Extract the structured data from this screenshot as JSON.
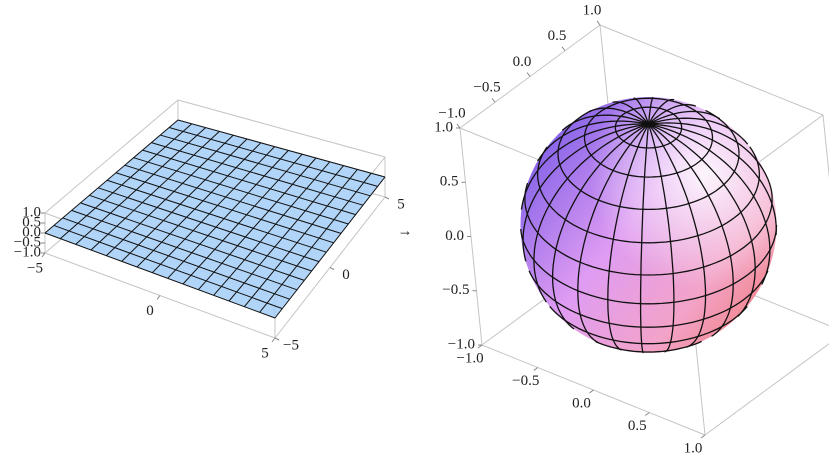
{
  "chart_data": [
    {
      "type": "surface3d",
      "color": "#a9d0f7",
      "mesh": 15,
      "xlim": [
        -5,
        5
      ],
      "ylim": [
        -5,
        5
      ],
      "zlim": [
        -1,
        1
      ],
      "xticks": [
        {
          "value": -5,
          "label": "−5"
        },
        0,
        5
      ],
      "yticks": [
        {
          "value": -5,
          "label": "−5"
        },
        0,
        5
      ],
      "zticks": [
        {
          "value": -1,
          "label": "−1.0"
        },
        {
          "value": -0.5,
          "label": "−0.5"
        },
        {
          "value": 0,
          "label": "0.0"
        },
        0.5,
        {
          "value": 1,
          "label": "1.0"
        }
      ]
    },
    {
      "type": "sphere3d",
      "xlim": [
        -1,
        1
      ],
      "ylim": [
        -1,
        1
      ],
      "zlim": [
        -1,
        1
      ],
      "xticks": [
        {
          "value": -1,
          "label": "−1.0"
        },
        {
          "value": -0.5,
          "label": "−0.5"
        },
        {
          "value": 0,
          "label": "0.0"
        },
        0.5,
        {
          "value": 1,
          "label": "1.0"
        }
      ],
      "yticks": [
        {
          "value": -1,
          "label": "−1.0"
        },
        {
          "value": -0.5,
          "label": "−0.5"
        },
        {
          "value": 0,
          "label": "0.0"
        },
        0.5,
        {
          "value": 1,
          "label": "1.0"
        }
      ],
      "zticks": [
        {
          "value": -1,
          "label": "−1.0"
        },
        {
          "value": -0.5,
          "label": "−0.5"
        },
        {
          "value": 0,
          "label": "0.0"
        },
        0.5,
        {
          "value": 1,
          "label": "1.0"
        }
      ]
    }
  ],
  "arrow": "→"
}
